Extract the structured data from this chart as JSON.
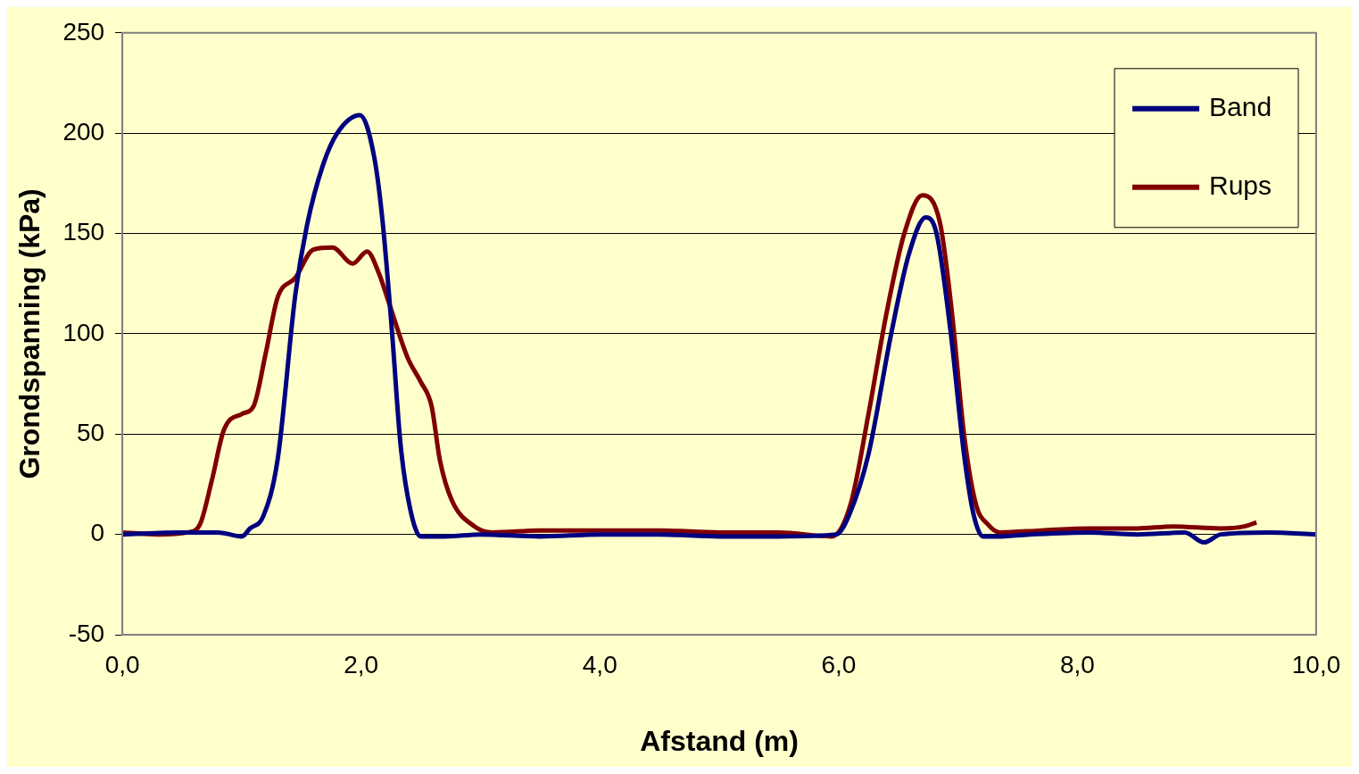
{
  "chart_data": {
    "type": "line",
    "xlabel": "Afstand (m)",
    "ylabel": "Grondspanning (kPa)",
    "xlim": [
      0,
      10
    ],
    "xticks": [
      {
        "value": 0,
        "label": "0,0"
      },
      {
        "value": 2,
        "label": "2,0"
      },
      {
        "value": 4,
        "label": "4,0"
      },
      {
        "value": 6,
        "label": "6,0"
      },
      {
        "value": 8,
        "label": "8,0"
      },
      {
        "value": 10,
        "label": "10,0"
      }
    ],
    "ylim": [
      -50,
      250
    ],
    "yticks": [
      -50,
      0,
      50,
      100,
      150,
      200,
      250
    ],
    "grid": "y",
    "legend": "top right",
    "marker": "none",
    "line_style": "solid",
    "series": [
      {
        "name": "Band",
        "color": "#000080",
        "x": [
          0,
          0.5,
          0.8,
          1.0,
          1.07,
          1.18,
          1.3,
          1.45,
          1.55,
          1.68,
          1.8,
          1.99,
          2.11,
          2.18,
          2.26,
          2.33,
          2.41,
          2.5,
          2.7,
          3.0,
          3.5,
          4.0,
          4.5,
          5.0,
          5.5,
          5.98,
          6.09,
          6.25,
          6.44,
          6.59,
          6.73,
          6.82,
          6.94,
          7.05,
          7.13,
          7.21,
          7.32,
          7.6,
          8.1,
          8.5,
          8.9,
          9.06,
          9.2,
          9.6,
          10
        ],
        "values": [
          0,
          1,
          1,
          -1,
          3,
          9,
          37,
          120,
          155,
          184,
          200,
          209,
          188,
          156,
          100,
          45,
          13,
          -1,
          -1,
          0,
          -1,
          0,
          0,
          -1,
          -1,
          0,
          10,
          40,
          100,
          140,
          158,
          150,
          100,
          40,
          10,
          -1,
          -1,
          0,
          1,
          0,
          1,
          -4,
          0,
          1,
          0
        ]
      },
      {
        "name": "Rups",
        "color": "#800000",
        "x": [
          0,
          0.3,
          0.55,
          0.65,
          0.75,
          0.85,
          1.0,
          1.1,
          1.2,
          1.3,
          1.45,
          1.6,
          1.76,
          1.93,
          2.05,
          2.15,
          2.23,
          2.39,
          2.5,
          2.59,
          2.66,
          2.76,
          2.95,
          3.1,
          3.5,
          4.0,
          4.5,
          5.0,
          5.5,
          5.94,
          6.1,
          6.25,
          6.4,
          6.55,
          6.7,
          6.85,
          6.95,
          7.05,
          7.15,
          7.25,
          7.35,
          7.7,
          8.1,
          8.5,
          8.8,
          9.2,
          9.4,
          9.5
        ],
        "values": [
          1,
          0,
          1,
          5,
          27,
          52,
          60,
          64,
          90,
          118,
          128,
          142,
          143,
          135,
          141,
          130,
          116,
          88,
          76,
          64,
          37,
          17,
          4,
          1,
          2,
          2,
          2,
          1,
          1,
          -1,
          15,
          60,
          110,
          150,
          169,
          155,
          110,
          50,
          15,
          5,
          1,
          2,
          3,
          3,
          4,
          3,
          4,
          6
        ]
      }
    ]
  }
}
